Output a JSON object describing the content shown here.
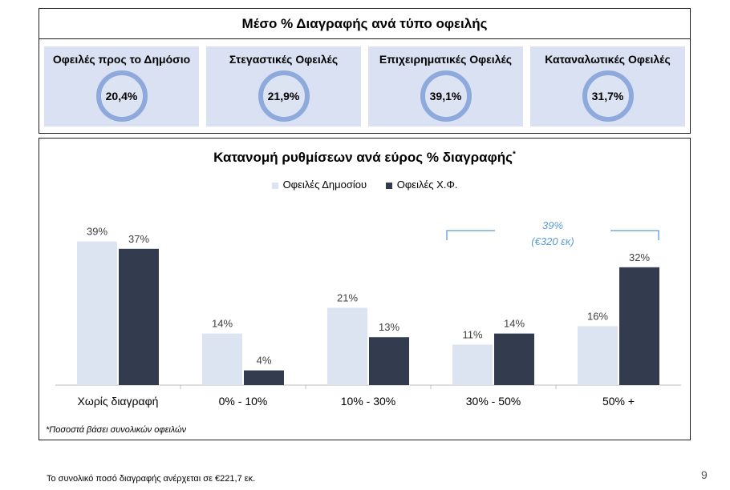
{
  "summary": {
    "title": "Μέσο % Διαγραφής ανά τύπο οφειλής",
    "cards": [
      {
        "label": "Οφειλές προς το Δημόσιο",
        "value": "20,4%"
      },
      {
        "label": "Στεγαστικές Οφειλές",
        "value": "21,9%"
      },
      {
        "label": "Επιχειρηματικές Οφειλές",
        "value": "39,1%"
      },
      {
        "label": "Καταναλωτικές Οφειλές",
        "value": "31,7%"
      }
    ]
  },
  "chart_data": {
    "type": "bar",
    "title": "Κατανομή ρυθμίσεων ανά εύρος % διαγραφής",
    "title_marker": "*",
    "categories": [
      "Χωρίς διαγραφή",
      "0% - 10%",
      "10% - 30%",
      "30% - 50%",
      "50% +"
    ],
    "series": [
      {
        "name": "Οφειλές Δημοσίου",
        "values": [
          39,
          14,
          21,
          11,
          16
        ],
        "labels": [
          "39%",
          "14%",
          "21%",
          "11%",
          "16%"
        ],
        "color": "#dce3f1"
      },
      {
        "name": "Οφειλές Χ.Φ.",
        "values": [
          37,
          4,
          13,
          14,
          32
        ],
        "labels": [
          "37%",
          "4%",
          "13%",
          "14%",
          "32%"
        ],
        "color": "#323c4e"
      }
    ],
    "ylim": [
      0,
      45
    ],
    "grid": false,
    "legend": "top-center",
    "annotation": {
      "line1": "39%",
      "line2": "(€320 εκ)",
      "color": "#5b9bd5"
    },
    "footnote": "*Ποσοστά βάσει συνολικών οφειλών"
  },
  "footer": {
    "note": "Το συνολικό ποσό διαγραφής ανέρχεται σε €221,7 εκ.",
    "page_number": "9"
  }
}
